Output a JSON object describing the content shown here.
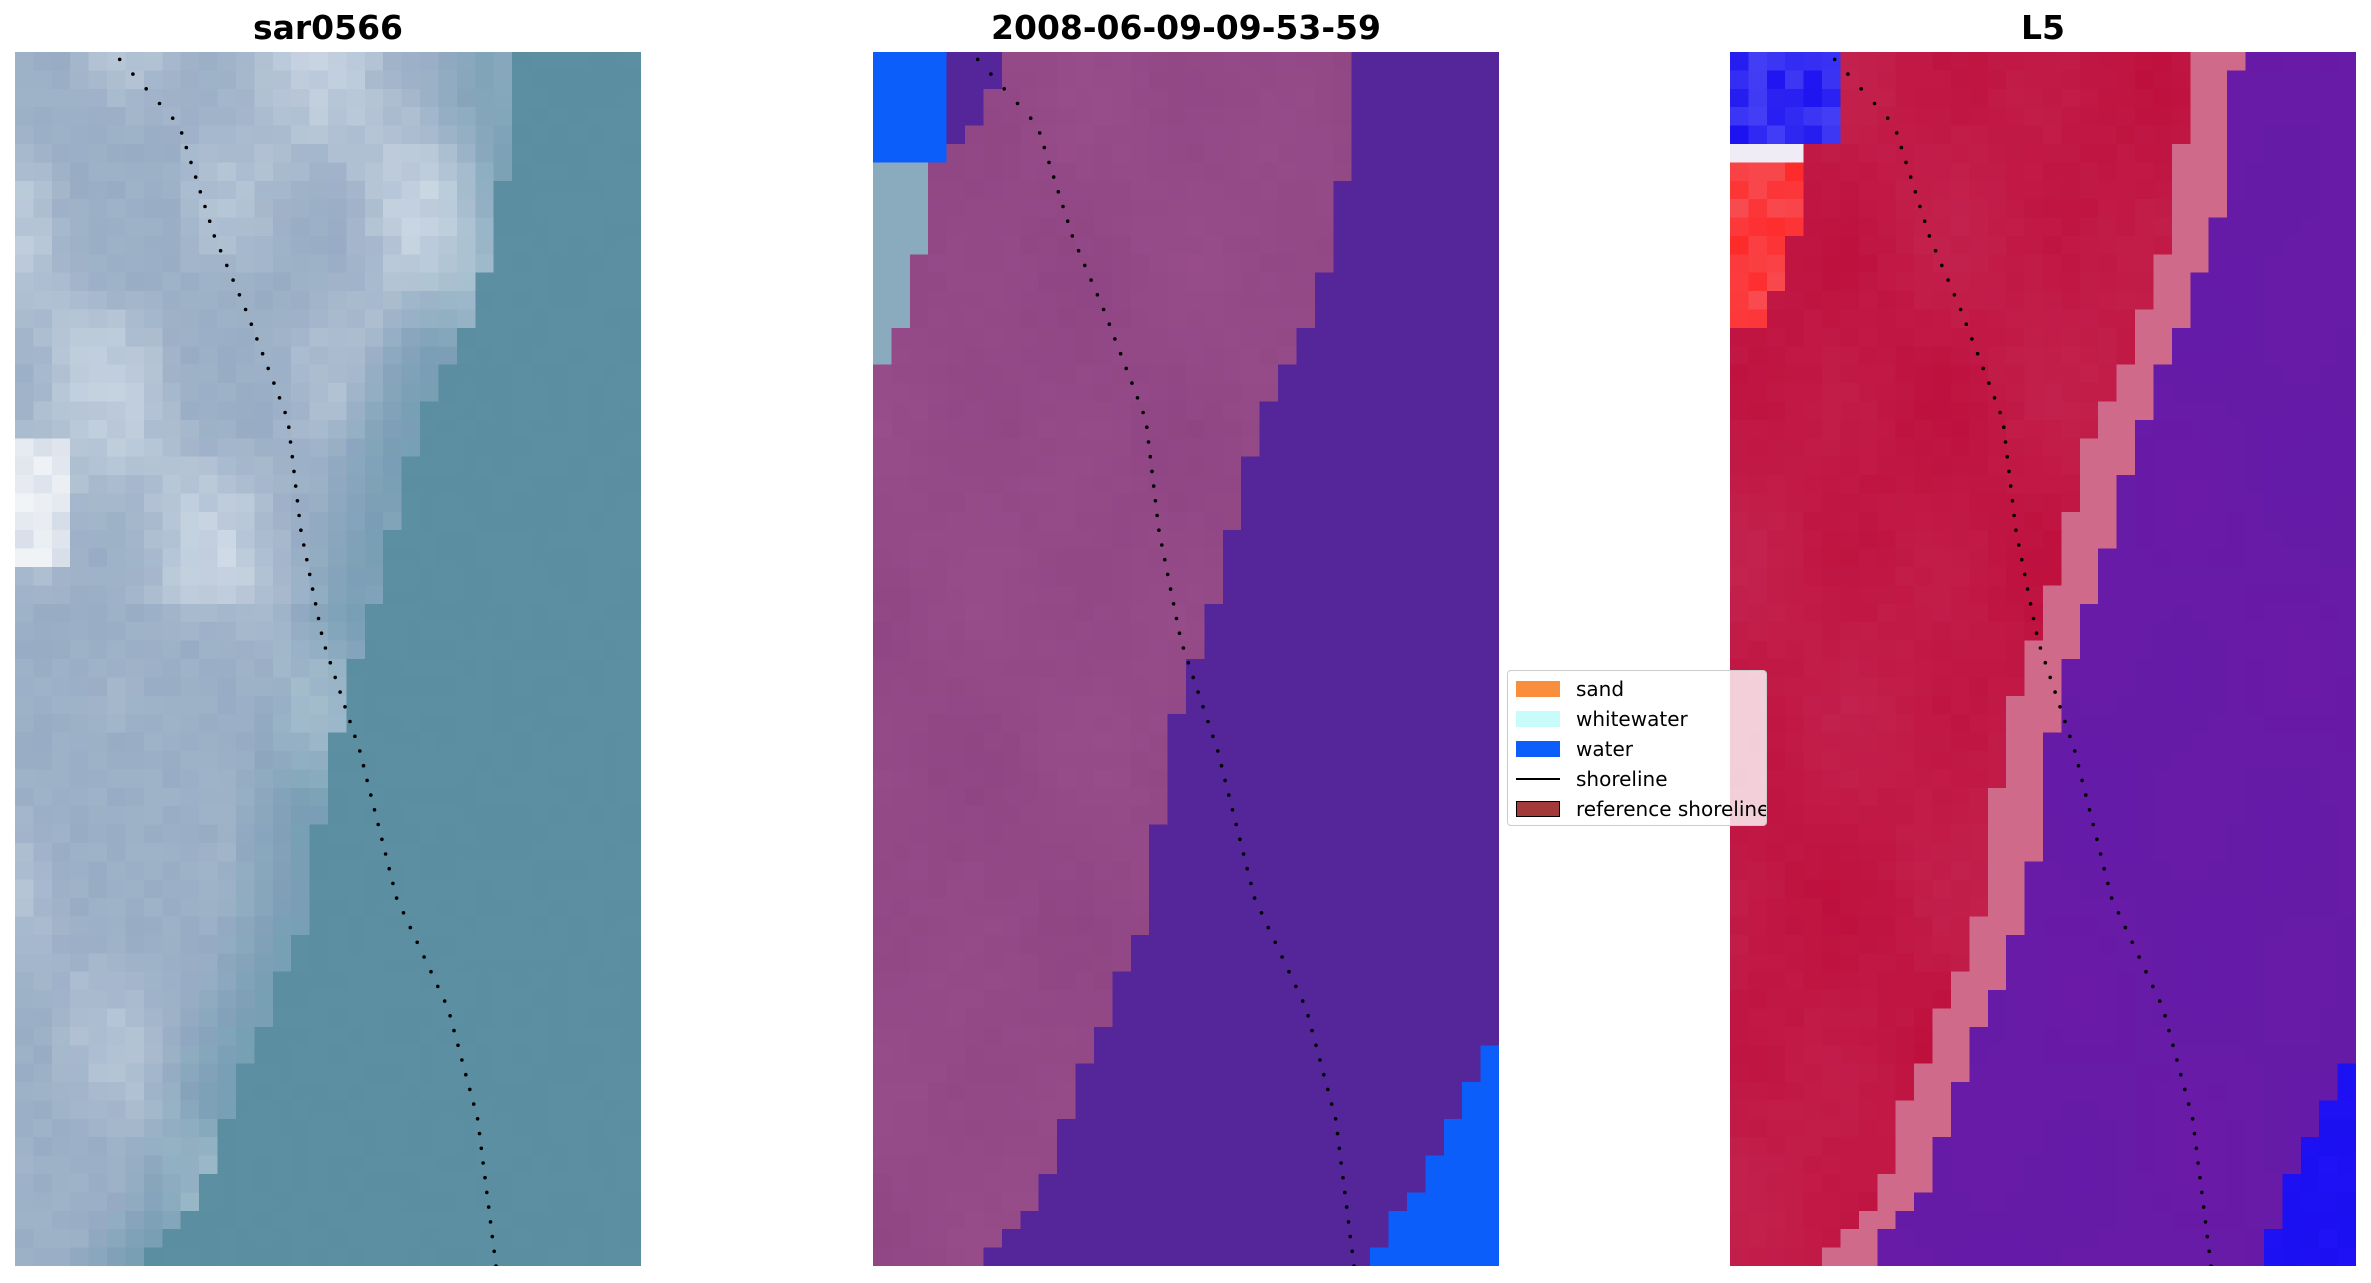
{
  "panels": [
    {
      "title": "sar0566"
    },
    {
      "title": "2008-06-09-09-53-59"
    },
    {
      "title": "L5"
    }
  ],
  "legend": {
    "items": [
      {
        "label": "sand",
        "kind": "patch",
        "color": "#f98e3d"
      },
      {
        "label": "whitewater",
        "kind": "patch",
        "color": "#c8fcfa"
      },
      {
        "label": "water",
        "kind": "patch",
        "color": "#0c5efa"
      },
      {
        "label": "shoreline",
        "kind": "line",
        "color": "#000000"
      },
      {
        "label": "reference shoreline",
        "kind": "patch",
        "color": "#a33a3a"
      }
    ]
  },
  "colors": {
    "shoreline": "#000000",
    "rgb_water": "#5a8ea0",
    "rgb_land": "#9fb3c8",
    "rgb_bright": "#e6edf4",
    "class_land": "#8f4483",
    "class_sea": "#55259a",
    "class_water": "#0c5efa",
    "class_pale": "#8aaabe",
    "index_land": "#be0e3c",
    "index_sea": "#6a1aa6",
    "index_band": "#d06a8a",
    "index_blue": "#1a10f0",
    "index_white": "#f0ecf6"
  }
}
